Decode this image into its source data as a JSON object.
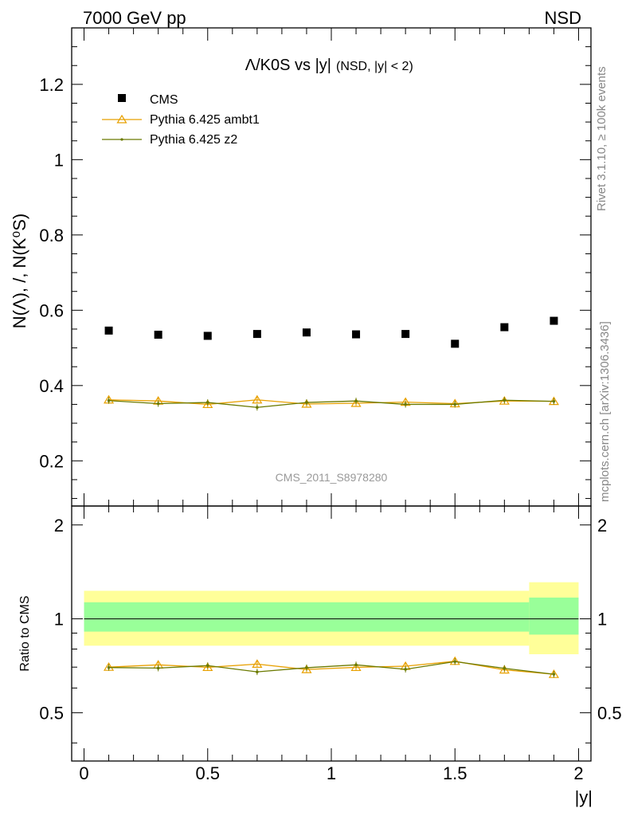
{
  "header": {
    "left": "7000 GeV pp",
    "right": "NSD"
  },
  "side_labels": {
    "rivet": "Rivet 3.1.10, ≥ 100k events",
    "mcplots": "mcplots.cern.ch [arXiv:1306.3436]"
  },
  "watermark": "CMS_2011_S8978280",
  "colors": {
    "cms": "#000000",
    "ambt1": "#e8a000",
    "z2": "#6b7a00",
    "band_outer": "#ffff99",
    "band_inner": "#99ff99"
  },
  "chart_data": [
    {
      "type": "scatter",
      "title_main": "Λ/K0S vs |y|",
      "title_sub": "(NSD, |y| < 2)",
      "ylabel": "N(Λ), /, N(K⁰S)",
      "xlim": [
        -0.05,
        2.05
      ],
      "ylim": [
        0.08,
        1.35
      ],
      "yticks": [
        0.2,
        0.4,
        0.6,
        0.8,
        1,
        1.2
      ],
      "ytick_labels": [
        "0.2",
        "0.4",
        "0.6",
        "0.8",
        "1",
        "1.2"
      ],
      "x": [
        0.1,
        0.3,
        0.5,
        0.7,
        0.9,
        1.1,
        1.3,
        1.5,
        1.7,
        1.9
      ],
      "legend_position": "top-left",
      "series": [
        {
          "name": "CMS",
          "marker": "square",
          "values": [
            0.546,
            0.535,
            0.532,
            0.537,
            0.541,
            0.536,
            0.537,
            0.511,
            0.555,
            0.572
          ]
        },
        {
          "name": "Pythia 6.425 ambt1",
          "marker": "triangle",
          "values": [
            0.362,
            0.359,
            0.35,
            0.362,
            0.351,
            0.353,
            0.356,
            0.352,
            0.359,
            0.358
          ]
        },
        {
          "name": "Pythia 6.425 z2",
          "marker": "dot",
          "values": [
            0.36,
            0.352,
            0.355,
            0.342,
            0.355,
            0.359,
            0.35,
            0.35,
            0.361,
            0.358
          ]
        }
      ]
    },
    {
      "type": "scatter",
      "ylabel": "Ratio to CMS",
      "xlabel": "|y|",
      "xlim": [
        -0.05,
        2.05
      ],
      "ylim": [
        0.35,
        2.3
      ],
      "yticks": [
        0.5,
        1,
        2
      ],
      "ytick_labels": [
        "0.5",
        "1",
        "2"
      ],
      "xticks": [
        0,
        0.5,
        1,
        1.5,
        2
      ],
      "xtick_labels": [
        "0",
        "0.5",
        "1",
        "1.5",
        "2"
      ],
      "x": [
        0.1,
        0.3,
        0.5,
        0.7,
        0.9,
        1.1,
        1.3,
        1.5,
        1.7,
        1.9
      ],
      "bands": [
        {
          "x_from": 0.0,
          "x_to": 1.8,
          "outer": [
            0.82,
            1.23
          ],
          "inner": [
            0.91,
            1.13
          ]
        },
        {
          "x_from": 1.8,
          "x_to": 2.0,
          "outer": [
            0.77,
            1.31
          ],
          "inner": [
            0.89,
            1.17
          ]
        }
      ],
      "series": [
        {
          "name": "Pythia 6.425 ambt1",
          "marker": "triangle",
          "values": [
            0.7,
            0.712,
            0.699,
            0.716,
            0.688,
            0.699,
            0.705,
            0.731,
            0.686,
            0.664
          ]
        },
        {
          "name": "Pythia 6.425 z2",
          "marker": "dot",
          "values": [
            0.698,
            0.695,
            0.708,
            0.676,
            0.697,
            0.712,
            0.689,
            0.729,
            0.694,
            0.664
          ]
        }
      ]
    }
  ]
}
